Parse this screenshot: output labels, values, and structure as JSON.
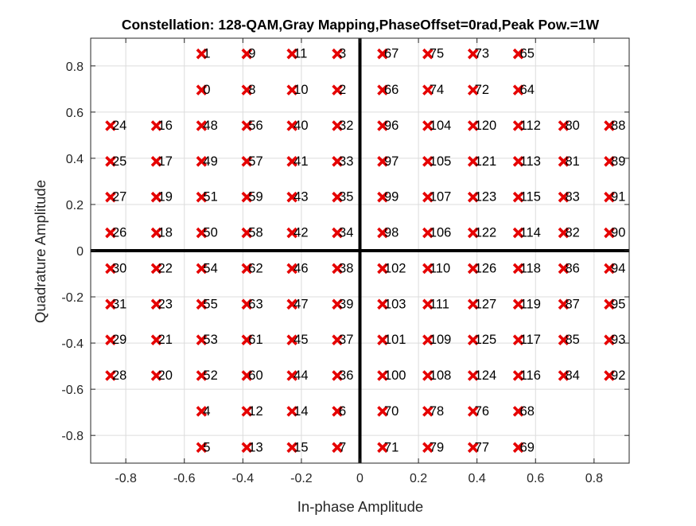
{
  "chart_data": {
    "type": "scatter",
    "title": "Constellation: 128-QAM,Gray Mapping,PhaseOffset=0rad,Peak Pow.=1W",
    "xlabel": "In-phase Amplitude",
    "ylabel": "Quadrature Amplitude",
    "xlim": [
      -0.92,
      0.92
    ],
    "ylim": [
      -0.92,
      0.92
    ],
    "xticks": [
      -0.8,
      -0.6,
      -0.4,
      -0.2,
      0,
      0.2,
      0.4,
      0.6,
      0.8
    ],
    "yticks": [
      -0.8,
      -0.6,
      -0.4,
      -0.2,
      0,
      0.2,
      0.4,
      0.6,
      0.8
    ],
    "xtick_labels": [
      "-0.8",
      "-0.6",
      "-0.4",
      "-0.2",
      "0",
      "0.2",
      "0.4",
      "0.6",
      "0.8"
    ],
    "ytick_labels": [
      "-0.8",
      "-0.6",
      "-0.4",
      "-0.2",
      "0",
      "0.2",
      "0.4",
      "0.6",
      "0.8"
    ],
    "grid": true,
    "marker": "x",
    "marker_color": "#e60000",
    "axis_line_color": "#000000",
    "levels": [
      -0.8521,
      -0.6957,
      -0.5411,
      -0.3865,
      -0.2319,
      -0.0773,
      0.0773,
      0.2319,
      0.3865,
      0.5411,
      0.6957,
      0.8521
    ],
    "points": [
      {
        "x": -0.5411,
        "y": 0.8521,
        "label": "1"
      },
      {
        "x": -0.3865,
        "y": 0.8521,
        "label": "9"
      },
      {
        "x": -0.2319,
        "y": 0.8521,
        "label": "11"
      },
      {
        "x": -0.0773,
        "y": 0.8521,
        "label": "3"
      },
      {
        "x": 0.0773,
        "y": 0.8521,
        "label": "67"
      },
      {
        "x": 0.2319,
        "y": 0.8521,
        "label": "75"
      },
      {
        "x": 0.3865,
        "y": 0.8521,
        "label": "73"
      },
      {
        "x": 0.5411,
        "y": 0.8521,
        "label": "65"
      },
      {
        "x": -0.5411,
        "y": 0.6957,
        "label": "0"
      },
      {
        "x": -0.3865,
        "y": 0.6957,
        "label": "8"
      },
      {
        "x": -0.2319,
        "y": 0.6957,
        "label": "10"
      },
      {
        "x": -0.0773,
        "y": 0.6957,
        "label": "2"
      },
      {
        "x": 0.0773,
        "y": 0.6957,
        "label": "66"
      },
      {
        "x": 0.2319,
        "y": 0.6957,
        "label": "74"
      },
      {
        "x": 0.3865,
        "y": 0.6957,
        "label": "72"
      },
      {
        "x": 0.5411,
        "y": 0.6957,
        "label": "64"
      },
      {
        "x": -0.8521,
        "y": 0.5411,
        "label": "24"
      },
      {
        "x": -0.6957,
        "y": 0.5411,
        "label": "16"
      },
      {
        "x": -0.5411,
        "y": 0.5411,
        "label": "48"
      },
      {
        "x": -0.3865,
        "y": 0.5411,
        "label": "56"
      },
      {
        "x": -0.2319,
        "y": 0.5411,
        "label": "40"
      },
      {
        "x": -0.0773,
        "y": 0.5411,
        "label": "32"
      },
      {
        "x": 0.0773,
        "y": 0.5411,
        "label": "96"
      },
      {
        "x": 0.2319,
        "y": 0.5411,
        "label": "104"
      },
      {
        "x": 0.3865,
        "y": 0.5411,
        "label": "120"
      },
      {
        "x": 0.5411,
        "y": 0.5411,
        "label": "112"
      },
      {
        "x": 0.6957,
        "y": 0.5411,
        "label": "80"
      },
      {
        "x": 0.8521,
        "y": 0.5411,
        "label": "88"
      },
      {
        "x": -0.8521,
        "y": 0.3865,
        "label": "25"
      },
      {
        "x": -0.6957,
        "y": 0.3865,
        "label": "17"
      },
      {
        "x": -0.5411,
        "y": 0.3865,
        "label": "49"
      },
      {
        "x": -0.3865,
        "y": 0.3865,
        "label": "57"
      },
      {
        "x": -0.2319,
        "y": 0.3865,
        "label": "41"
      },
      {
        "x": -0.0773,
        "y": 0.3865,
        "label": "33"
      },
      {
        "x": 0.0773,
        "y": 0.3865,
        "label": "97"
      },
      {
        "x": 0.2319,
        "y": 0.3865,
        "label": "105"
      },
      {
        "x": 0.3865,
        "y": 0.3865,
        "label": "121"
      },
      {
        "x": 0.5411,
        "y": 0.3865,
        "label": "113"
      },
      {
        "x": 0.6957,
        "y": 0.3865,
        "label": "81"
      },
      {
        "x": 0.8521,
        "y": 0.3865,
        "label": "89"
      },
      {
        "x": -0.8521,
        "y": 0.2319,
        "label": "27"
      },
      {
        "x": -0.6957,
        "y": 0.2319,
        "label": "19"
      },
      {
        "x": -0.5411,
        "y": 0.2319,
        "label": "51"
      },
      {
        "x": -0.3865,
        "y": 0.2319,
        "label": "59"
      },
      {
        "x": -0.2319,
        "y": 0.2319,
        "label": "43"
      },
      {
        "x": -0.0773,
        "y": 0.2319,
        "label": "35"
      },
      {
        "x": 0.0773,
        "y": 0.2319,
        "label": "99"
      },
      {
        "x": 0.2319,
        "y": 0.2319,
        "label": "107"
      },
      {
        "x": 0.3865,
        "y": 0.2319,
        "label": "123"
      },
      {
        "x": 0.5411,
        "y": 0.2319,
        "label": "115"
      },
      {
        "x": 0.6957,
        "y": 0.2319,
        "label": "83"
      },
      {
        "x": 0.8521,
        "y": 0.2319,
        "label": "91"
      },
      {
        "x": -0.8521,
        "y": 0.0773,
        "label": "26"
      },
      {
        "x": -0.6957,
        "y": 0.0773,
        "label": "18"
      },
      {
        "x": -0.5411,
        "y": 0.0773,
        "label": "50"
      },
      {
        "x": -0.3865,
        "y": 0.0773,
        "label": "58"
      },
      {
        "x": -0.2319,
        "y": 0.0773,
        "label": "42"
      },
      {
        "x": -0.0773,
        "y": 0.0773,
        "label": "34"
      },
      {
        "x": 0.0773,
        "y": 0.0773,
        "label": "98"
      },
      {
        "x": 0.2319,
        "y": 0.0773,
        "label": "106"
      },
      {
        "x": 0.3865,
        "y": 0.0773,
        "label": "122"
      },
      {
        "x": 0.5411,
        "y": 0.0773,
        "label": "114"
      },
      {
        "x": 0.6957,
        "y": 0.0773,
        "label": "82"
      },
      {
        "x": 0.8521,
        "y": 0.0773,
        "label": "90"
      },
      {
        "x": -0.8521,
        "y": -0.0773,
        "label": "30"
      },
      {
        "x": -0.6957,
        "y": -0.0773,
        "label": "22"
      },
      {
        "x": -0.5411,
        "y": -0.0773,
        "label": "54"
      },
      {
        "x": -0.3865,
        "y": -0.0773,
        "label": "62"
      },
      {
        "x": -0.2319,
        "y": -0.0773,
        "label": "46"
      },
      {
        "x": -0.0773,
        "y": -0.0773,
        "label": "38"
      },
      {
        "x": 0.0773,
        "y": -0.0773,
        "label": "102"
      },
      {
        "x": 0.2319,
        "y": -0.0773,
        "label": "110"
      },
      {
        "x": 0.3865,
        "y": -0.0773,
        "label": "126"
      },
      {
        "x": 0.5411,
        "y": -0.0773,
        "label": "118"
      },
      {
        "x": 0.6957,
        "y": -0.0773,
        "label": "86"
      },
      {
        "x": 0.8521,
        "y": -0.0773,
        "label": "94"
      },
      {
        "x": -0.8521,
        "y": -0.2319,
        "label": "31"
      },
      {
        "x": -0.6957,
        "y": -0.2319,
        "label": "23"
      },
      {
        "x": -0.5411,
        "y": -0.2319,
        "label": "55"
      },
      {
        "x": -0.3865,
        "y": -0.2319,
        "label": "63"
      },
      {
        "x": -0.2319,
        "y": -0.2319,
        "label": "47"
      },
      {
        "x": -0.0773,
        "y": -0.2319,
        "label": "39"
      },
      {
        "x": 0.0773,
        "y": -0.2319,
        "label": "103"
      },
      {
        "x": 0.2319,
        "y": -0.2319,
        "label": "111"
      },
      {
        "x": 0.3865,
        "y": -0.2319,
        "label": "127"
      },
      {
        "x": 0.5411,
        "y": -0.2319,
        "label": "119"
      },
      {
        "x": 0.6957,
        "y": -0.2319,
        "label": "87"
      },
      {
        "x": 0.8521,
        "y": -0.2319,
        "label": "95"
      },
      {
        "x": -0.8521,
        "y": -0.3865,
        "label": "29"
      },
      {
        "x": -0.6957,
        "y": -0.3865,
        "label": "21"
      },
      {
        "x": -0.5411,
        "y": -0.3865,
        "label": "53"
      },
      {
        "x": -0.3865,
        "y": -0.3865,
        "label": "61"
      },
      {
        "x": -0.2319,
        "y": -0.3865,
        "label": "45"
      },
      {
        "x": -0.0773,
        "y": -0.3865,
        "label": "37"
      },
      {
        "x": 0.0773,
        "y": -0.3865,
        "label": "101"
      },
      {
        "x": 0.2319,
        "y": -0.3865,
        "label": "109"
      },
      {
        "x": 0.3865,
        "y": -0.3865,
        "label": "125"
      },
      {
        "x": 0.5411,
        "y": -0.3865,
        "label": "117"
      },
      {
        "x": 0.6957,
        "y": -0.3865,
        "label": "85"
      },
      {
        "x": 0.8521,
        "y": -0.3865,
        "label": "93"
      },
      {
        "x": -0.8521,
        "y": -0.5411,
        "label": "28"
      },
      {
        "x": -0.6957,
        "y": -0.5411,
        "label": "20"
      },
      {
        "x": -0.5411,
        "y": -0.5411,
        "label": "52"
      },
      {
        "x": -0.3865,
        "y": -0.5411,
        "label": "60"
      },
      {
        "x": -0.2319,
        "y": -0.5411,
        "label": "44"
      },
      {
        "x": -0.0773,
        "y": -0.5411,
        "label": "36"
      },
      {
        "x": 0.0773,
        "y": -0.5411,
        "label": "100"
      },
      {
        "x": 0.2319,
        "y": -0.5411,
        "label": "108"
      },
      {
        "x": 0.3865,
        "y": -0.5411,
        "label": "124"
      },
      {
        "x": 0.5411,
        "y": -0.5411,
        "label": "116"
      },
      {
        "x": 0.6957,
        "y": -0.5411,
        "label": "84"
      },
      {
        "x": 0.8521,
        "y": -0.5411,
        "label": "92"
      },
      {
        "x": -0.5411,
        "y": -0.6957,
        "label": "4"
      },
      {
        "x": -0.3865,
        "y": -0.6957,
        "label": "12"
      },
      {
        "x": -0.2319,
        "y": -0.6957,
        "label": "14"
      },
      {
        "x": -0.0773,
        "y": -0.6957,
        "label": "6"
      },
      {
        "x": 0.0773,
        "y": -0.6957,
        "label": "70"
      },
      {
        "x": 0.2319,
        "y": -0.6957,
        "label": "78"
      },
      {
        "x": 0.3865,
        "y": -0.6957,
        "label": "76"
      },
      {
        "x": 0.5411,
        "y": -0.6957,
        "label": "68"
      },
      {
        "x": -0.5411,
        "y": -0.8521,
        "label": "5"
      },
      {
        "x": -0.3865,
        "y": -0.8521,
        "label": "13"
      },
      {
        "x": -0.2319,
        "y": -0.8521,
        "label": "15"
      },
      {
        "x": -0.0773,
        "y": -0.8521,
        "label": "7"
      },
      {
        "x": 0.0773,
        "y": -0.8521,
        "label": "71"
      },
      {
        "x": 0.2319,
        "y": -0.8521,
        "label": "79"
      },
      {
        "x": 0.3865,
        "y": -0.8521,
        "label": "77"
      },
      {
        "x": 0.5411,
        "y": -0.8521,
        "label": "69"
      }
    ]
  }
}
